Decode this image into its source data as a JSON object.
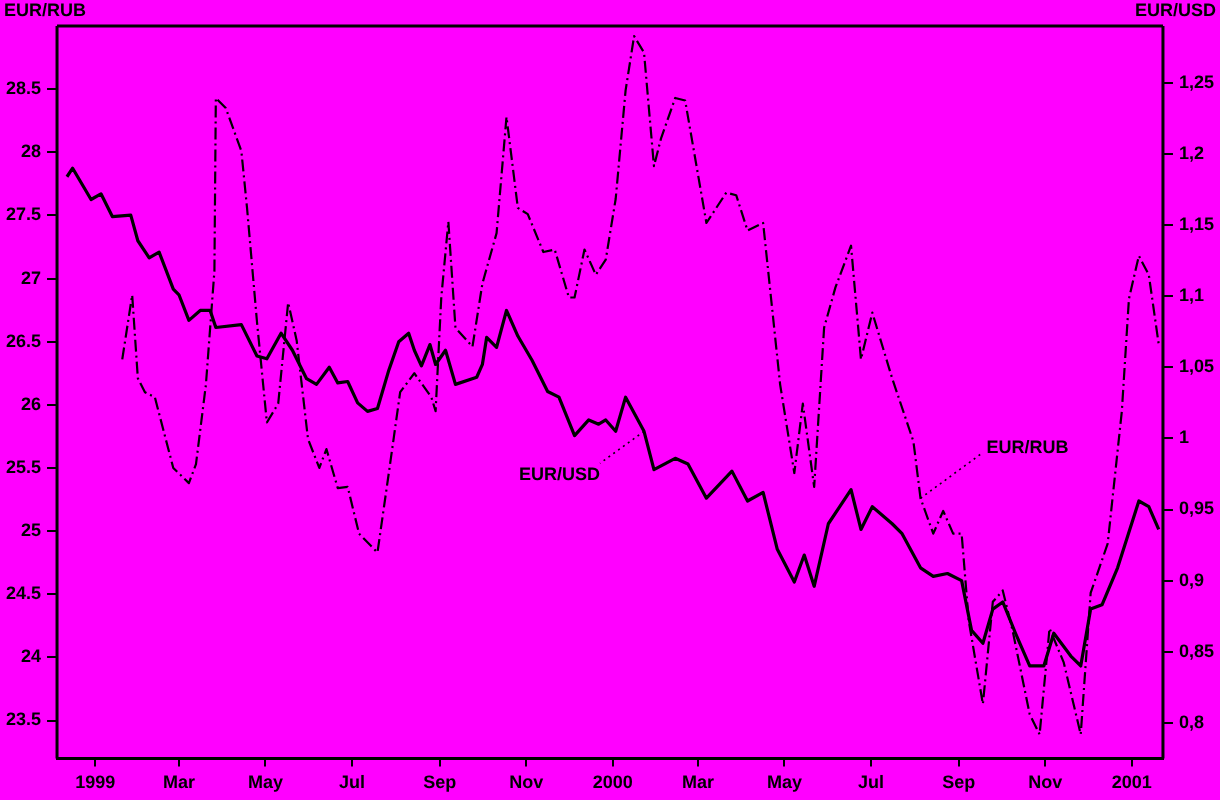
{
  "chart_data": {
    "type": "line",
    "ylabel": "EUR/RUB",
    "y2label": "EUR/USD",
    "x": [
      "1998-12-12",
      "1998-12-16",
      "1998-12-29",
      "1999-01-05",
      "1999-01-13",
      "1999-01-26",
      "1999-01-31",
      "1999-02-08",
      "1999-02-15",
      "1999-02-25",
      "1999-03-01",
      "1999-03-08",
      "1999-03-16",
      "1999-03-23",
      "1999-03-27",
      "1999-04-14",
      "1999-04-25",
      "1999-05-02",
      "1999-05-12",
      "1999-05-20",
      "1999-05-30",
      "1999-06-06",
      "1999-06-15",
      "1999-06-21",
      "1999-06-28",
      "1999-07-05",
      "1999-07-12",
      "1999-07-19",
      "1999-07-27",
      "1999-08-03",
      "1999-08-10",
      "1999-08-14",
      "1999-08-19",
      "1999-08-25",
      "1999-08-29",
      "1999-09-05",
      "1999-09-12",
      "1999-09-27",
      "1999-10-01",
      "1999-10-04",
      "1999-10-11",
      "1999-10-18",
      "1999-10-26",
      "1999-11-05",
      "1999-11-16",
      "1999-11-24",
      "1999-12-05",
      "1999-12-15",
      "1999-12-22",
      "1999-12-27",
      "2000-01-03",
      "2000-01-10",
      "2000-01-23",
      "2000-01-30",
      "2000-02-14",
      "2000-02-23",
      "2000-03-07",
      "2000-03-25",
      "2000-04-05",
      "2000-04-16",
      "2000-04-26",
      "2000-05-08",
      "2000-05-15",
      "2000-05-22",
      "2000-06-01",
      "2000-06-17",
      "2000-06-24",
      "2000-07-02",
      "2000-07-16",
      "2000-07-23",
      "2000-08-05",
      "2000-08-14",
      "2000-08-24",
      "2000-09-03",
      "2000-09-10",
      "2000-09-18",
      "2000-09-25",
      "2000-10-02",
      "2000-10-11",
      "2000-10-21",
      "2000-10-31",
      "2000-11-07",
      "2000-11-19",
      "2000-11-26",
      "2000-12-03",
      "2000-12-11",
      "2000-12-22",
      "2001-01-06",
      "2001-01-13",
      "2001-01-20"
    ],
    "series": [
      {
        "name": "EUR/USD",
        "color": "#000000",
        "axis": "y2",
        "line_style": "solid",
        "values": [
          1.184,
          1.19,
          1.168,
          1.172,
          1.156,
          1.157,
          1.139,
          1.127,
          1.131,
          1.105,
          1.101,
          1.083,
          1.09,
          1.09,
          1.078,
          1.08,
          1.058,
          1.056,
          1.074,
          1.062,
          1.042,
          1.038,
          1.05,
          1.039,
          1.04,
          1.025,
          1.019,
          1.021,
          1.048,
          1.068,
          1.074,
          1.062,
          1.051,
          1.066,
          1.052,
          1.062,
          1.038,
          1.043,
          1.052,
          1.071,
          1.064,
          1.09,
          1.072,
          1.055,
          1.033,
          1.029,
          1.002,
          1.013,
          1.01,
          1.013,
          1.005,
          1.029,
          1.005,
          0.978,
          0.986,
          0.982,
          0.958,
          0.977,
          0.956,
          0.962,
          0.922,
          0.899,
          0.918,
          0.896,
          0.94,
          0.964,
          0.936,
          0.952,
          0.94,
          0.933,
          0.909,
          0.903,
          0.905,
          0.9,
          0.865,
          0.856,
          0.88,
          0.885,
          0.863,
          0.84,
          0.84,
          0.863,
          0.847,
          0.84,
          0.88,
          0.883,
          0.909,
          0.956,
          0.952,
          0.936
        ]
      },
      {
        "name": "EUR/RUB",
        "color": "#000000",
        "axis": "y",
        "line_style": "dashed",
        "x": [
          "1999-01-20",
          "1999-01-27",
          "1999-01-31",
          "1999-02-05",
          "1999-02-12",
          "1999-02-18",
          "1999-02-25",
          "1999-03-08",
          "1999-03-13",
          "1999-03-20",
          "1999-03-26",
          "1999-03-27",
          "1999-04-03",
          "1999-04-14",
          "1999-04-18",
          "1999-04-25",
          "1999-05-02",
          "1999-05-10",
          "1999-05-17",
          "1999-05-23",
          "1999-05-31",
          "1999-06-08",
          "1999-06-13",
          "1999-06-21",
          "1999-06-28",
          "1999-07-06",
          "1999-07-19",
          "1999-07-27",
          "1999-08-04",
          "1999-08-14",
          "1999-08-26",
          "1999-08-29",
          "1999-09-02",
          "1999-09-07",
          "1999-09-12",
          "1999-09-24",
          "1999-10-01",
          "1999-10-11",
          "1999-10-18",
          "1999-10-26",
          "1999-11-02",
          "1999-11-13",
          "1999-11-21",
          "1999-12-01",
          "1999-12-05",
          "1999-12-12",
          "1999-12-20",
          "1999-12-27",
          "2000-01-03",
          "2000-01-10",
          "2000-01-16",
          "2000-01-23",
          "2000-01-30",
          "2000-02-04",
          "2000-02-14",
          "2000-02-21",
          "2000-03-07",
          "2000-03-21",
          "2000-03-28",
          "2000-04-05",
          "2000-04-16",
          "2000-04-28",
          "2000-05-08",
          "2000-05-14",
          "2000-05-22",
          "2000-05-29",
          "2000-06-06",
          "2000-06-17",
          "2000-06-24",
          "2000-07-02",
          "2000-07-16",
          "2000-07-31",
          "2000-08-05",
          "2000-08-14",
          "2000-08-21",
          "2000-08-28",
          "2000-09-03",
          "2000-09-08",
          "2000-09-18",
          "2000-09-25",
          "2000-10-02",
          "2000-10-09",
          "2000-10-21",
          "2000-10-28",
          "2000-11-04",
          "2000-11-14",
          "2000-11-26",
          "2000-12-03",
          "2000-12-15",
          "2000-12-25",
          "2000-12-30",
          "2001-01-06",
          "2001-01-13",
          "2001-01-20"
        ],
        "values": [
          26.36,
          26.87,
          26.21,
          26.1,
          26.06,
          25.8,
          25.5,
          25.38,
          25.53,
          26.16,
          27.06,
          28.43,
          28.35,
          28.01,
          27.56,
          26.66,
          25.86,
          26.01,
          26.81,
          26.51,
          25.73,
          25.5,
          25.65,
          25.34,
          25.35,
          24.98,
          24.83,
          25.46,
          26.1,
          26.25,
          26.06,
          25.95,
          26.85,
          27.45,
          26.61,
          26.46,
          26.96,
          27.36,
          28.28,
          27.56,
          27.51,
          27.21,
          27.23,
          26.85,
          26.85,
          27.23,
          27.03,
          27.15,
          27.63,
          28.49,
          28.92,
          28.79,
          27.89,
          28.11,
          28.43,
          28.41,
          27.44,
          27.68,
          27.66,
          27.38,
          27.44,
          26.16,
          25.46,
          26.01,
          25.35,
          26.61,
          26.93,
          27.26,
          26.36,
          26.73,
          26.21,
          25.71,
          25.26,
          24.98,
          25.16,
          24.98,
          24.98,
          24.29,
          23.63,
          24.44,
          24.53,
          24.21,
          23.55,
          23.39,
          24.23,
          23.96,
          23.39,
          24.51,
          24.9,
          25.95,
          26.84,
          27.18,
          27.03,
          26.48
        ]
      }
    ],
    "xlim": [
      "1998-12-05",
      "2001-01-23"
    ],
    "xticks": [
      {
        "value": "1999-01-01",
        "label": "1999"
      },
      {
        "value": "1999-03-01",
        "label": "Mar"
      },
      {
        "value": "1999-05-01",
        "label": "May"
      },
      {
        "value": "1999-07-01",
        "label": "Jul"
      },
      {
        "value": "1999-09-01",
        "label": "Sep"
      },
      {
        "value": "1999-11-01",
        "label": "Nov"
      },
      {
        "value": "2000-01-01",
        "label": "2000"
      },
      {
        "value": "2000-03-01",
        "label": "Mar"
      },
      {
        "value": "2000-05-01",
        "label": "May"
      },
      {
        "value": "2000-07-01",
        "label": "Jul"
      },
      {
        "value": "2000-09-01",
        "label": "Sep"
      },
      {
        "value": "2000-11-01",
        "label": "Nov"
      },
      {
        "value": "2001-01-01",
        "label": "2001"
      }
    ],
    "ylim": [
      23.2,
      29
    ],
    "yticks": [
      23.5,
      24,
      24.5,
      25,
      25.5,
      26,
      26.5,
      27,
      27.5,
      28,
      28.5
    ],
    "y2lim": [
      0.775,
      1.29
    ],
    "y2ticks": [
      {
        "value": 0.8,
        "label": "0,8"
      },
      {
        "value": 0.85,
        "label": "0,85"
      },
      {
        "value": 0.9,
        "label": "0,9"
      },
      {
        "value": 0.95,
        "label": "0,95"
      },
      {
        "value": 1,
        "label": "1"
      },
      {
        "value": 1.05,
        "label": "1,05"
      },
      {
        "value": 1.1,
        "label": "1,1"
      },
      {
        "value": 1.15,
        "label": "1,15"
      },
      {
        "value": 1.2,
        "label": "1,2"
      },
      {
        "value": 1.25,
        "label": "1,25"
      }
    ],
    "grid": false,
    "legend": false,
    "marker": "none"
  }
}
